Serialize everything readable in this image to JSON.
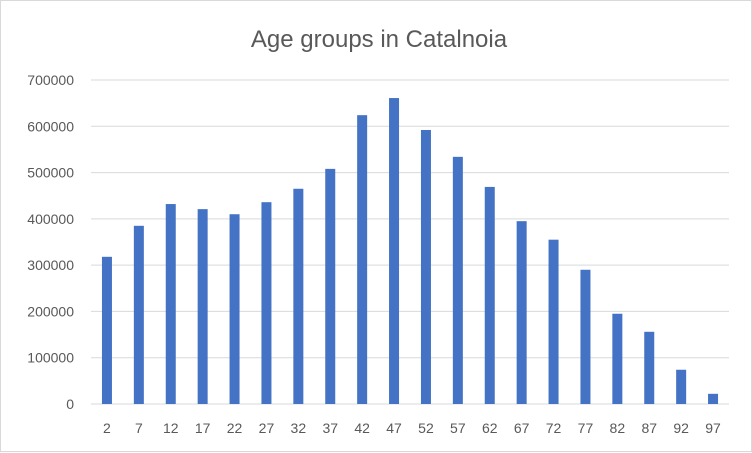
{
  "chart_data": {
    "type": "bar",
    "title": "Age groups in Catalnoia",
    "xlabel": "",
    "ylabel": "",
    "categories": [
      "2",
      "7",
      "12",
      "17",
      "22",
      "27",
      "32",
      "37",
      "42",
      "47",
      "52",
      "57",
      "62",
      "67",
      "72",
      "77",
      "82",
      "87",
      "92",
      "97"
    ],
    "values": [
      318000,
      385000,
      432000,
      421000,
      410000,
      436000,
      465000,
      508000,
      624000,
      661000,
      592000,
      534000,
      469000,
      395000,
      355000,
      290000,
      195000,
      156000,
      74000,
      22000
    ],
    "ylim": [
      0,
      700000
    ],
    "yticks": [
      "0",
      "100000",
      "200000",
      "300000",
      "400000",
      "500000",
      "600000",
      "700000"
    ],
    "grid": true,
    "legend": "none",
    "colors": {
      "bar": "#4472C4",
      "grid": "#d9d9d9",
      "text": "#595959"
    }
  }
}
